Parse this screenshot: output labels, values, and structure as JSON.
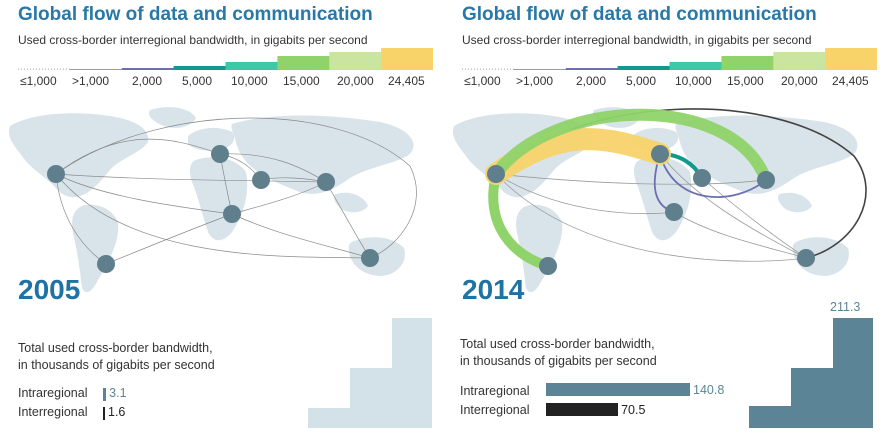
{
  "panels": [
    {
      "title": "Global flow of data and communication",
      "subtitle": "Used cross-border interregional bandwidth, in gigabits per second",
      "legend": {
        "labels": [
          "≤1,000",
          ">1,000",
          "2,000",
          "5,000",
          "10,000",
          "15,000",
          "20,000",
          "24,405"
        ],
        "colors": [
          "#c8c8c8",
          "#9a9a9a",
          "#6c6fb0",
          "#0f9a8c",
          "#3cc9a8",
          "#8fd36a",
          "#c9e5a0",
          "#f8d36a"
        ]
      },
      "year": "2005",
      "total_label_line1": "Total used cross-border bandwidth,",
      "total_label_line2": "in thousands of gigabits per second",
      "rows": [
        {
          "label": "Intraregional",
          "value": "3.1",
          "number": 3.1,
          "color": "#5b8596"
        },
        {
          "label": "Interregional",
          "value": "1.6",
          "number": 1.6,
          "color": "#222222"
        }
      ]
    },
    {
      "title": "Global flow of data and communication",
      "subtitle": "Used cross-border interregional bandwidth, in gigabits per second",
      "legend": {
        "labels": [
          "≤1,000",
          ">1,000",
          "2,000",
          "5,000",
          "10,000",
          "15,000",
          "20,000",
          "24,405"
        ],
        "colors": [
          "#c8c8c8",
          "#9a9a9a",
          "#6c6fb0",
          "#0f9a8c",
          "#3cc9a8",
          "#8fd36a",
          "#c9e5a0",
          "#f8d36a"
        ]
      },
      "year": "2014",
      "total_label_line1": "Total used cross-border bandwidth,",
      "total_label_line2": "in thousands of gigabits per second",
      "rows": [
        {
          "label": "Intraregional",
          "value": "140.8",
          "number": 140.8,
          "color": "#5b8596"
        },
        {
          "label": "Interregional",
          "value": "70.5",
          "number": 70.5,
          "color": "#222222"
        }
      ],
      "total_value": "211.3"
    }
  ],
  "colors": {
    "title": "#2878a8",
    "land": "#d8e4ea",
    "node": "#5f7f8c",
    "stairs_2005": "#d3e1e8",
    "stairs_2014": "#5b8596"
  }
}
